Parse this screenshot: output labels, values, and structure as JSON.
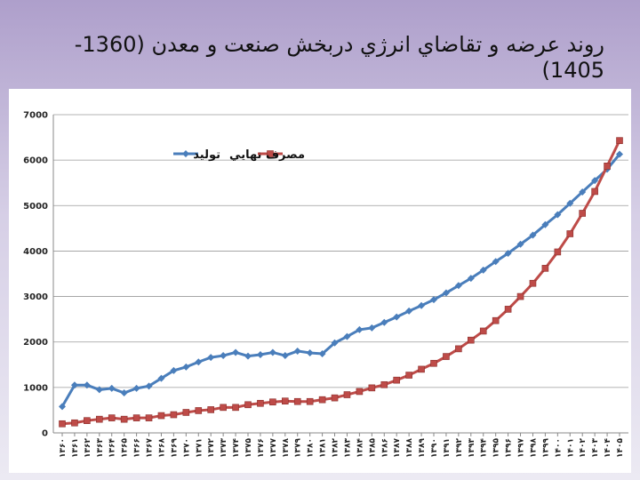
{
  "chart_data": {
    "type": "line",
    "title": "روند عرضه و تقاضاي انرژي دربخش صنعت و معدن (1360-1405)",
    "categories": [
      "۱۳۶۰",
      "۱۳۶۱",
      "۱۳۶۲",
      "۱۳۶۳",
      "۱۳۶۴",
      "۱۳۶۵",
      "۱۳۶۶",
      "۱۳۶۷",
      "۱۳۶۸",
      "۱۳۶۹",
      "۱۳۷۰",
      "۱۳۷۱",
      "۱۳۷۲",
      "۱۳۷۳",
      "۱۳۷۴",
      "۱۳۷۵",
      "۱۳۷۶",
      "۱۳۷۷",
      "۱۳۷۸",
      "۱۳۷۹",
      "۱۳۸۰",
      "۱۳۸۱",
      "۱۳۸۲",
      "۱۳۸۳",
      "۱۳۸۴",
      "۱۳۸۵",
      "۱۳۸۶",
      "۱۳۸۷",
      "۱۳۸۸",
      "۱۳۸۹",
      "۱۳۹۰",
      "۱۳۹۱",
      "۱۳۹۲",
      "۱۳۹۳",
      "۱۳۹۴",
      "۱۳۹۵",
      "۱۳۹۶",
      "۱۳۹۷",
      "۱۳۹۸",
      "۱۳۹۹",
      "۱۴۰۰",
      "۱۴۰۱",
      "۱۴۰۲",
      "۱۴۰۳",
      "۱۴۰۴",
      "۱۴۰۵"
    ],
    "series": [
      {
        "name": "توليد",
        "color": "#4a7ebb",
        "marker": "diamond",
        "values": [
          580,
          1050,
          1050,
          950,
          980,
          880,
          980,
          1030,
          1200,
          1370,
          1450,
          1560,
          1660,
          1700,
          1770,
          1690,
          1720,
          1770,
          1700,
          1800,
          1760,
          1740,
          1980,
          2120,
          2270,
          2310,
          2430,
          2550,
          2680,
          2800,
          2930,
          3080,
          3240,
          3400,
          3580,
          3770,
          3950,
          4150,
          4350,
          4580,
          4800,
          5050,
          5300,
          5550,
          5800,
          6130
        ]
      },
      {
        "name": "مصرف نهايي",
        "color": "#be4b48",
        "marker": "square",
        "values": [
          200,
          220,
          270,
          300,
          330,
          300,
          330,
          330,
          380,
          400,
          450,
          490,
          510,
          560,
          560,
          620,
          650,
          680,
          700,
          690,
          690,
          730,
          770,
          840,
          910,
          990,
          1060,
          1160,
          1270,
          1400,
          1530,
          1680,
          1850,
          2040,
          2240,
          2470,
          2720,
          3000,
          3290,
          3620,
          3980,
          4380,
          4830,
          5310,
          5870,
          6430
        ]
      }
    ],
    "ylim": [
      0,
      7000
    ],
    "yticks": [
      0,
      1000,
      2000,
      3000,
      4000,
      5000,
      6000,
      7000
    ],
    "grid": true
  }
}
